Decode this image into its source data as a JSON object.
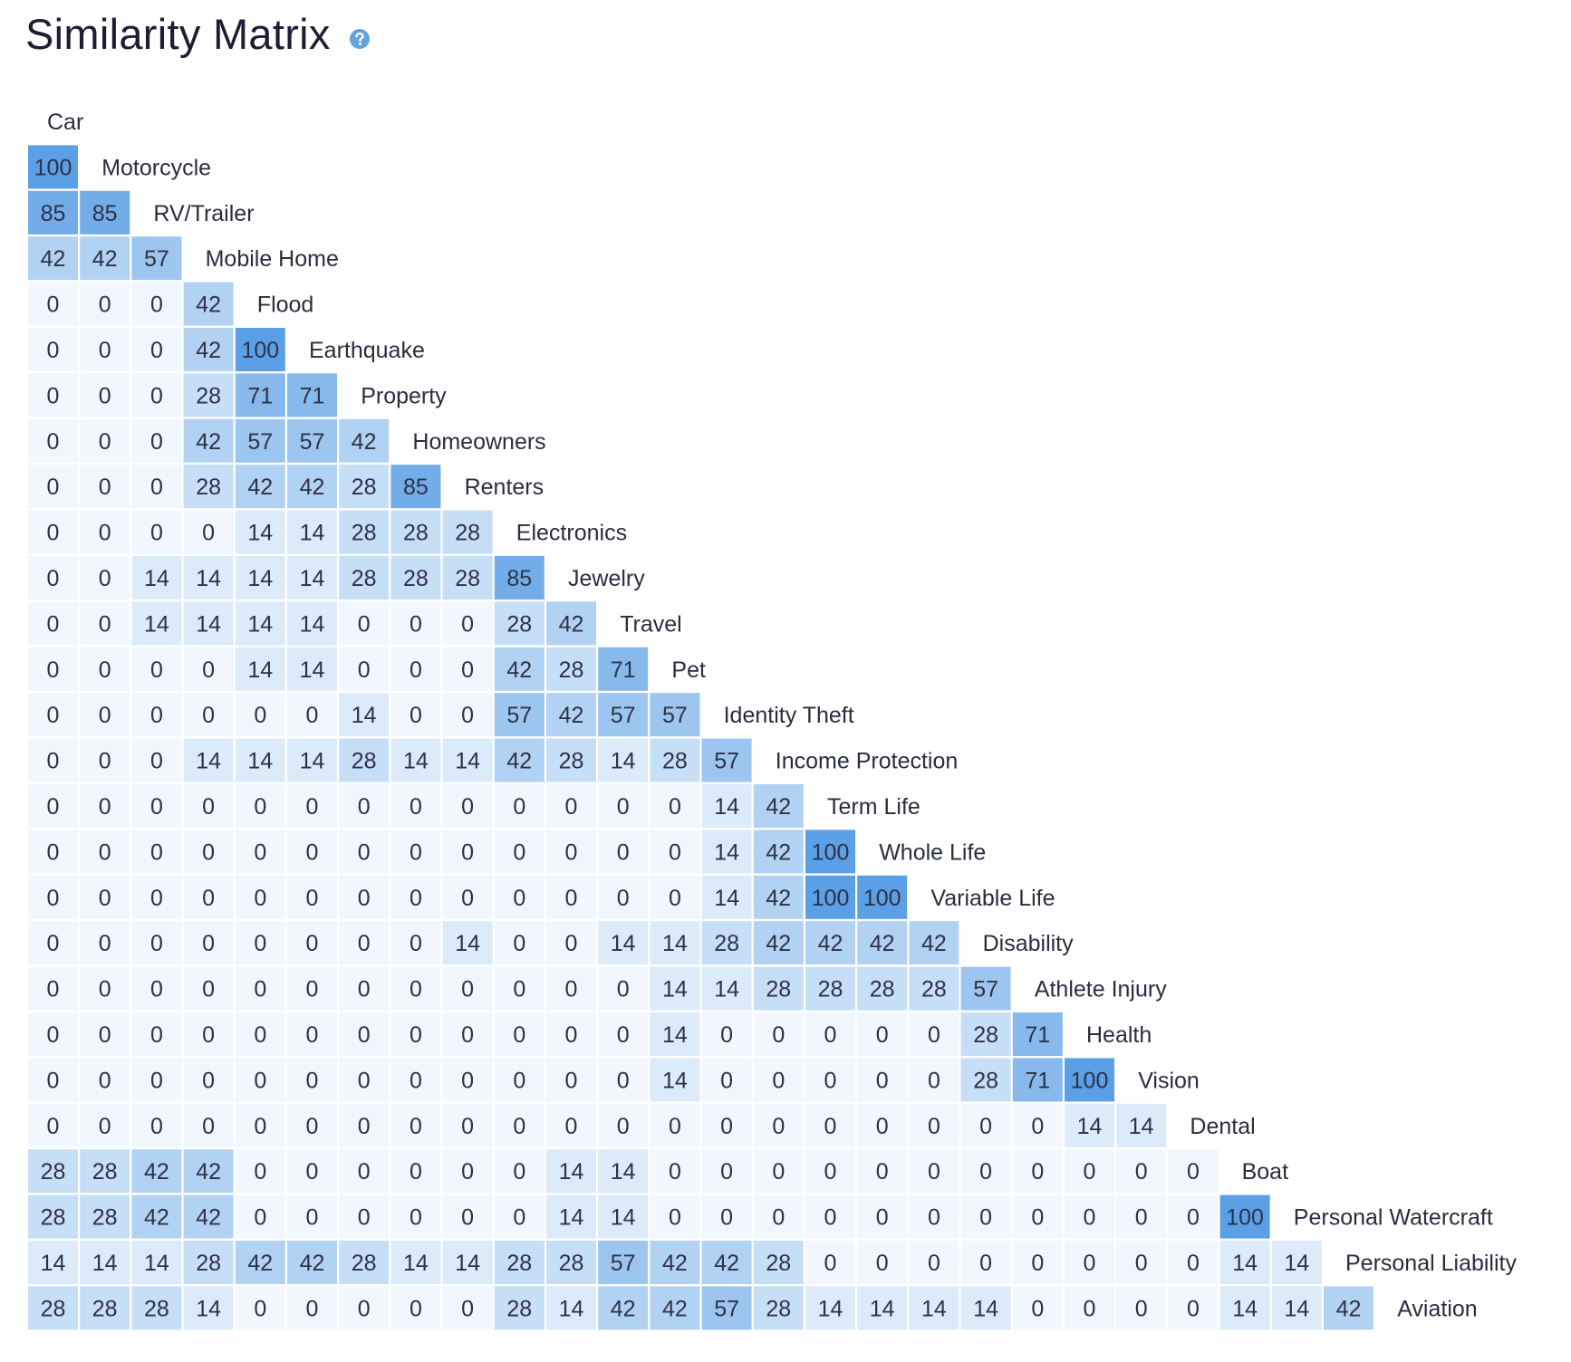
{
  "title": "Similarity Matrix",
  "icons": {
    "help": "question-circle-icon"
  },
  "colors": {
    "low": "#f1f7fd",
    "high": "#5b9fe6",
    "cell_border": "#ffffff",
    "help_icon": "#62a3e0"
  },
  "chart_data": {
    "type": "heatmap",
    "layout": "lower-triangular",
    "value_range": [
      0,
      100
    ],
    "labels": [
      "Car",
      "Motorcycle",
      "RV/Trailer",
      "Mobile Home",
      "Flood",
      "Earthquake",
      "Property",
      "Homeowners",
      "Renters",
      "Electronics",
      "Jewelry",
      "Travel",
      "Pet",
      "Identity Theft",
      "Income Protection",
      "Term Life",
      "Whole Life",
      "Variable Life",
      "Disability",
      "Athlete Injury",
      "Health",
      "Vision",
      "Dental",
      "Boat",
      "Personal Watercraft",
      "Personal Liability",
      "Aviation"
    ],
    "rows": [
      [],
      [
        100
      ],
      [
        85,
        85
      ],
      [
        42,
        42,
        57
      ],
      [
        0,
        0,
        0,
        42
      ],
      [
        0,
        0,
        0,
        42,
        100
      ],
      [
        0,
        0,
        0,
        28,
        71,
        71
      ],
      [
        0,
        0,
        0,
        42,
        57,
        57,
        42
      ],
      [
        0,
        0,
        0,
        28,
        42,
        42,
        28,
        85
      ],
      [
        0,
        0,
        0,
        0,
        14,
        14,
        28,
        28,
        28
      ],
      [
        0,
        0,
        14,
        14,
        14,
        14,
        28,
        28,
        28,
        85
      ],
      [
        0,
        0,
        14,
        14,
        14,
        14,
        0,
        0,
        0,
        28,
        42
      ],
      [
        0,
        0,
        0,
        0,
        14,
        14,
        0,
        0,
        0,
        42,
        28,
        71
      ],
      [
        0,
        0,
        0,
        0,
        0,
        0,
        14,
        0,
        0,
        57,
        42,
        57,
        57
      ],
      [
        0,
        0,
        0,
        14,
        14,
        14,
        28,
        14,
        14,
        42,
        28,
        14,
        28,
        57
      ],
      [
        0,
        0,
        0,
        0,
        0,
        0,
        0,
        0,
        0,
        0,
        0,
        0,
        0,
        14,
        42
      ],
      [
        0,
        0,
        0,
        0,
        0,
        0,
        0,
        0,
        0,
        0,
        0,
        0,
        0,
        14,
        42,
        100
      ],
      [
        0,
        0,
        0,
        0,
        0,
        0,
        0,
        0,
        0,
        0,
        0,
        0,
        0,
        14,
        42,
        100,
        100
      ],
      [
        0,
        0,
        0,
        0,
        0,
        0,
        0,
        0,
        14,
        0,
        0,
        14,
        14,
        28,
        42,
        42,
        42,
        42
      ],
      [
        0,
        0,
        0,
        0,
        0,
        0,
        0,
        0,
        0,
        0,
        0,
        0,
        14,
        14,
        28,
        28,
        28,
        28,
        57
      ],
      [
        0,
        0,
        0,
        0,
        0,
        0,
        0,
        0,
        0,
        0,
        0,
        0,
        14,
        0,
        0,
        0,
        0,
        0,
        28,
        71
      ],
      [
        0,
        0,
        0,
        0,
        0,
        0,
        0,
        0,
        0,
        0,
        0,
        0,
        14,
        0,
        0,
        0,
        0,
        0,
        28,
        71,
        100
      ],
      [
        0,
        0,
        0,
        0,
        0,
        0,
        0,
        0,
        0,
        0,
        0,
        0,
        0,
        0,
        0,
        0,
        0,
        0,
        0,
        0,
        14,
        14
      ],
      [
        28,
        28,
        42,
        42,
        0,
        0,
        0,
        0,
        0,
        0,
        14,
        14,
        0,
        0,
        0,
        0,
        0,
        0,
        0,
        0,
        0,
        0,
        0
      ],
      [
        28,
        28,
        42,
        42,
        0,
        0,
        0,
        0,
        0,
        0,
        14,
        14,
        0,
        0,
        0,
        0,
        0,
        0,
        0,
        0,
        0,
        0,
        0,
        100
      ],
      [
        14,
        14,
        14,
        28,
        42,
        42,
        28,
        14,
        14,
        28,
        28,
        57,
        42,
        42,
        28,
        0,
        0,
        0,
        0,
        0,
        0,
        0,
        0,
        14,
        14
      ],
      [
        28,
        28,
        28,
        14,
        0,
        0,
        0,
        0,
        0,
        28,
        14,
        42,
        42,
        57,
        28,
        14,
        14,
        14,
        14,
        0,
        0,
        0,
        0,
        14,
        14,
        42
      ]
    ]
  }
}
